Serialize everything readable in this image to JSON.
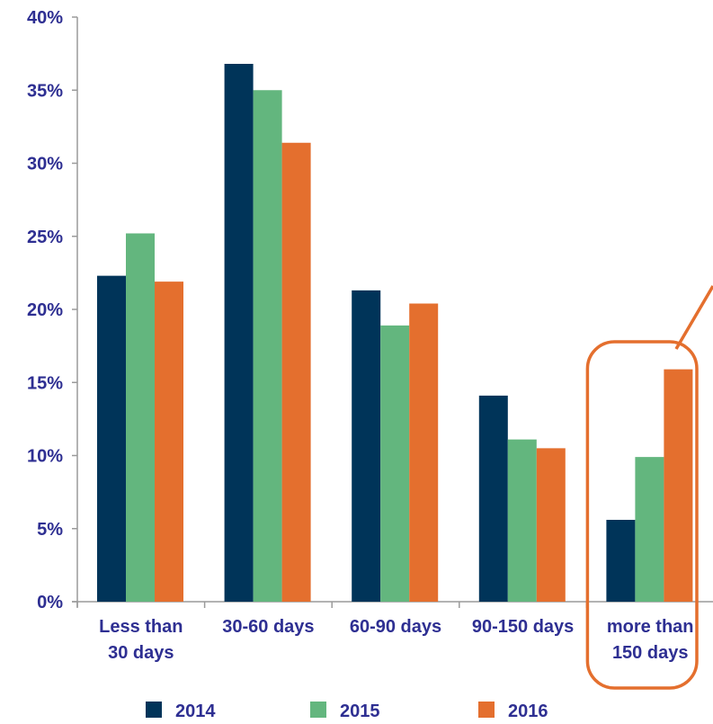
{
  "chart_data": {
    "type": "bar",
    "categories": [
      [
        "Less than",
        "30 days"
      ],
      [
        "30-60 days"
      ],
      [
        "60-90 days"
      ],
      [
        "90-150 days"
      ],
      [
        "more than",
        "150 days"
      ]
    ],
    "series": [
      {
        "name": "2014",
        "color": "#003459",
        "values": [
          22.3,
          36.8,
          21.3,
          14.1,
          5.6
        ]
      },
      {
        "name": "2015",
        "color": "#63b67e",
        "values": [
          25.2,
          35.0,
          18.9,
          11.1,
          9.9
        ]
      },
      {
        "name": "2016",
        "color": "#e46f2e",
        "values": [
          21.9,
          31.4,
          20.4,
          10.5,
          15.9
        ]
      }
    ],
    "yticks": [
      "0%",
      "5%",
      "10%",
      "15%",
      "20%",
      "25%",
      "30%",
      "35%",
      "40%"
    ],
    "ylim": [
      0,
      40
    ],
    "grid": false,
    "legend_position": "bottom",
    "highlight": {
      "category_index": 4,
      "color": "#e46f2e",
      "shape": "rounded-rectangle-callout"
    }
  }
}
